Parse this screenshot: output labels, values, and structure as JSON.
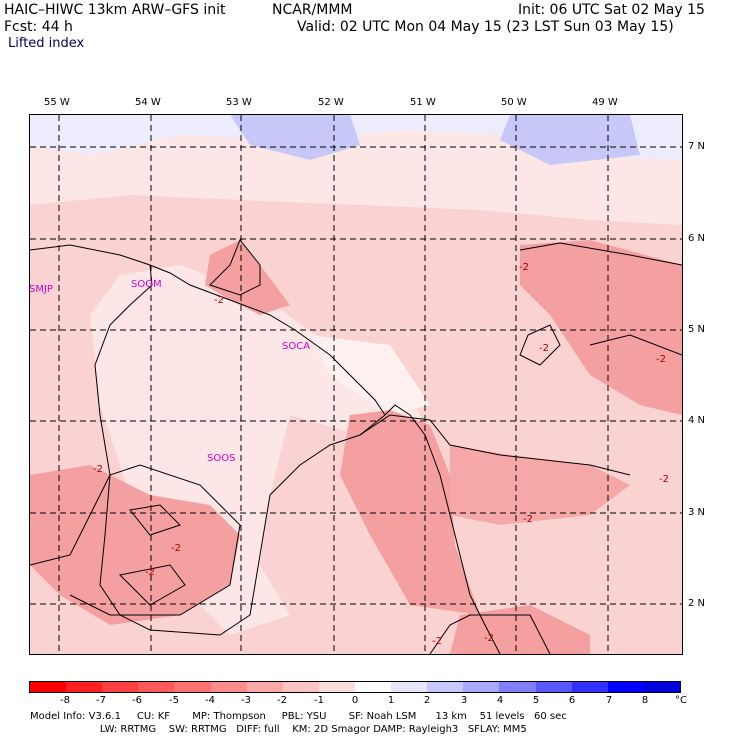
{
  "header": {
    "model": "HAIC–HIWC 13km ARW–GFS init",
    "center": "NCAR/MMM",
    "init": "Init: 06 UTC Sat 02 May 15",
    "fcst": "Fcst:    44 h",
    "valid": "Valid: 02 UTC Mon 04 May 15 (23 LST Sun 03 May 15)",
    "field": "Lifted index"
  },
  "lon_labels": [
    "55 W",
    "54 W",
    "53 W",
    "52 W",
    "51 W",
    "50 W",
    "49 W"
  ],
  "lat_labels": [
    "7 N",
    "6 N",
    "5 N",
    "4 N",
    "3 N",
    "2 N"
  ],
  "stations": [
    "SMJP",
    "SOGM",
    "SOCA",
    "SOOS"
  ],
  "contour_label": "-2",
  "colorbar": {
    "ticks": [
      "-8",
      "-7",
      "-6",
      "-5",
      "-4",
      "-3",
      "-2",
      "-1",
      "0",
      "1",
      "2",
      "3",
      "4",
      "5",
      "6",
      "7",
      "8"
    ],
    "unit": "°C",
    "colors": [
      "#ff0000",
      "#ff2020",
      "#ff4040",
      "#ff5a5a",
      "#ff7272",
      "#fa8c8c",
      "#faa8a8",
      "#fbc3c3",
      "#fcdede",
      "#ffffff",
      "#e6e6ff",
      "#c8c8ff",
      "#a8a8ff",
      "#8080ff",
      "#5858ff",
      "#3030ff",
      "#0000ff",
      "#0000dd"
    ]
  },
  "footer": {
    "line1": "Model Info: V3.6.1     CU: KF       MP: Thompson     PBL: YSU       SF: Noah LSM      13 km    51 levels   60 sec",
    "line2": "                      LW: RRTMG    SW: RRTMG   DIFF: full    KM: 2D Smagor DAMP: Rayleigh3   SFLAY: MM5"
  }
}
